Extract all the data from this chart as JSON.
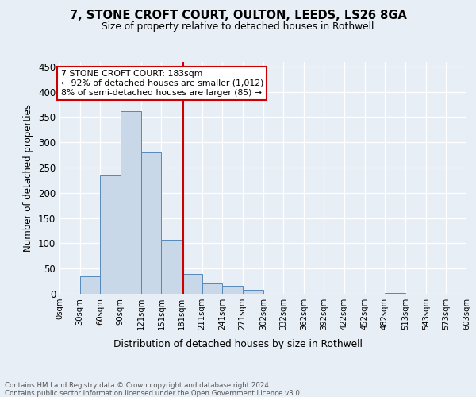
{
  "title1": "7, STONE CROFT COURT, OULTON, LEEDS, LS26 8GA",
  "title2": "Size of property relative to detached houses in Rothwell",
  "xlabel": "Distribution of detached houses by size in Rothwell",
  "ylabel": "Number of detached properties",
  "bin_edges": [
    0,
    30,
    60,
    90,
    121,
    151,
    181,
    211,
    241,
    271,
    302,
    332,
    362,
    392,
    422,
    452,
    482,
    513,
    543,
    573,
    603
  ],
  "bar_heights": [
    0,
    35,
    235,
    362,
    280,
    107,
    40,
    20,
    15,
    8,
    0,
    0,
    0,
    0,
    0,
    0,
    2,
    0,
    0,
    0,
    0
  ],
  "bar_color": "#c8d8e8",
  "bar_edge_color": "#5588bb",
  "vline_x": 183,
  "vline_color": "#cc0000",
  "annotation_text": "7 STONE CROFT COURT: 183sqm\n← 92% of detached houses are smaller (1,012)\n8% of semi-detached houses are larger (85) →",
  "annotation_box_color": "#cc0000",
  "ylim": [
    0,
    460
  ],
  "yticks": [
    0,
    50,
    100,
    150,
    200,
    250,
    300,
    350,
    400,
    450
  ],
  "xtick_labels": [
    "0sqm",
    "30sqm",
    "60sqm",
    "90sqm",
    "121sqm",
    "151sqm",
    "181sqm",
    "211sqm",
    "241sqm",
    "271sqm",
    "302sqm",
    "332sqm",
    "362sqm",
    "392sqm",
    "422sqm",
    "452sqm",
    "482sqm",
    "513sqm",
    "543sqm",
    "573sqm",
    "603sqm"
  ],
  "footer_text": "Contains HM Land Registry data © Crown copyright and database right 2024.\nContains public sector information licensed under the Open Government Licence v3.0.",
  "bg_color": "#e8eef5",
  "plot_bg_color": "#e8eef5"
}
